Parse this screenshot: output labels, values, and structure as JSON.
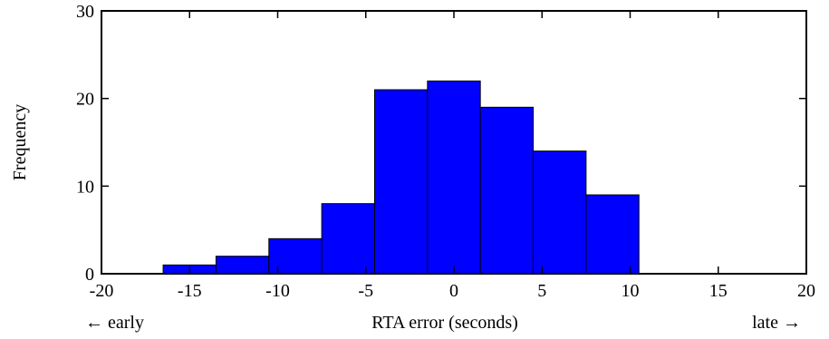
{
  "chart_data": {
    "type": "bar",
    "bin_edges": [
      -16.5,
      -13.5,
      -10.5,
      -7.5,
      -4.5,
      -1.5,
      1.5,
      4.5,
      7.5,
      10.5
    ],
    "values": [
      1,
      2,
      4,
      8,
      21,
      22,
      19,
      14,
      9
    ],
    "xlabel": "RTA error (seconds)",
    "ylabel": "Frequency",
    "xlabel_left": "← early",
    "xlabel_right": "late →",
    "xlim": [
      -20,
      20
    ],
    "ylim": [
      0,
      30
    ],
    "xticks": [
      -20,
      -15,
      -10,
      -5,
      0,
      5,
      10,
      15,
      20
    ],
    "yticks": [
      0,
      10,
      20,
      30
    ],
    "bar_color": "#0000ff",
    "grid": false
  }
}
